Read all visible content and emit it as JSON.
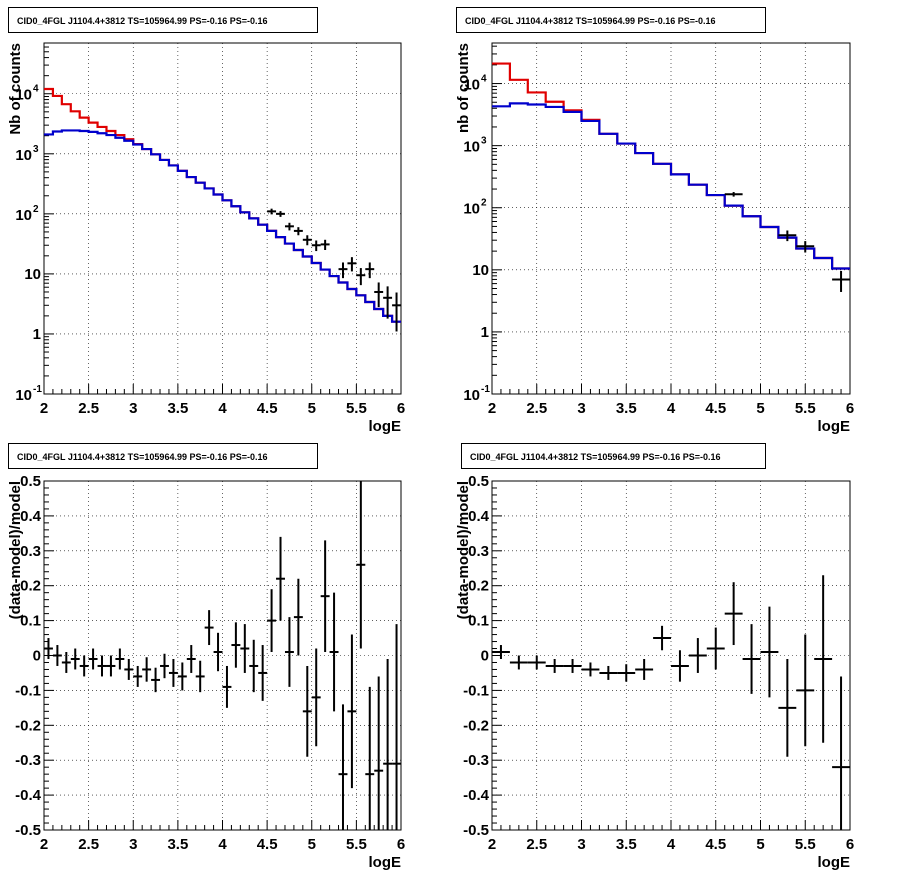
{
  "title_text": "CID0_4FGL J1104.4+3812 TS=105964.99 PS=-0.16 PS=-0.16",
  "chart_data": [
    {
      "panel": "counts-fine",
      "type": "line",
      "title": "CID0_4FGL J1104.4+3812 TS=105964.99 PS=-0.16 PS=-0.16",
      "xlabel": "logE",
      "ylabel": "Nb of counts",
      "xlim": [
        2,
        6
      ],
      "ylim": [
        0.1,
        70000
      ],
      "yscale": "log",
      "grid": true,
      "x_ticks": [
        "2",
        "2.5",
        "3",
        "3.5",
        "4",
        "4.5",
        "5",
        "5.5",
        "6"
      ],
      "y_ticks": [
        "10^-1",
        "1",
        "10",
        "10^2",
        "10^3",
        "10^4"
      ],
      "bin_edges": [
        2.0,
        2.1,
        2.2,
        2.3,
        2.4,
        2.5,
        2.6,
        2.7,
        2.8,
        2.9,
        3.0,
        3.1,
        3.2,
        3.3,
        3.4,
        3.5,
        3.6,
        3.7,
        3.8,
        3.9,
        4.0,
        4.1,
        4.2,
        4.3,
        4.4,
        4.5,
        4.6,
        4.7,
        4.8,
        4.9,
        5.0,
        5.1,
        5.2,
        5.3,
        5.4,
        5.5,
        5.6,
        5.7,
        5.8,
        5.9,
        6.0
      ],
      "series": [
        {
          "color": "#e00000",
          "draw": "step",
          "values": [
            12000,
            9200,
            6700,
            5100,
            4000,
            3300,
            2800,
            2400,
            2050,
            1750,
            1450,
            1200,
            980,
            790,
            640,
            520,
            410,
            330,
            265,
            210,
            168,
            134,
            106,
            84,
            66,
            52,
            41,
            32,
            25,
            19.5,
            15.2,
            11.8,
            9.2,
            7.2,
            5.6,
            4.4,
            3.4,
            2.6,
            2.0,
            1.6
          ]
        },
        {
          "color": "#0000cc",
          "draw": "step",
          "values": [
            2100,
            2350,
            2450,
            2450,
            2400,
            2320,
            2200,
            2050,
            1850,
            1650,
            1430,
            1200,
            980,
            790,
            640,
            520,
            410,
            330,
            265,
            210,
            168,
            134,
            106,
            84,
            66,
            52,
            41,
            32,
            25,
            19.5,
            15.2,
            11.8,
            9.2,
            7.2,
            5.6,
            4.4,
            3.4,
            2.6,
            2.0,
            1.6
          ]
        },
        {
          "color": "#000000",
          "draw": "errorbar",
          "x": [
            4.55,
            4.65,
            4.75,
            4.85,
            4.95,
            5.05,
            5.15,
            5.35,
            5.45,
            5.55,
            5.65,
            5.75,
            5.85,
            5.95
          ],
          "values": [
            110,
            100,
            62,
            52,
            37,
            30,
            31,
            12,
            15,
            9.5,
            12,
            5,
            4,
            3
          ],
          "errors": [
            12,
            11,
            9,
            8,
            7,
            6,
            6,
            3.5,
            4,
            3,
            3.5,
            2.2,
            2.2,
            1.9
          ]
        }
      ]
    },
    {
      "panel": "counts-coarse",
      "type": "line",
      "title": "CID0_4FGL J1104.4+3812 TS=105964.99 PS=-0.16 PS=-0.16",
      "xlabel": "logE",
      "ylabel": "nb of counts",
      "xlim": [
        2,
        6
      ],
      "ylim": [
        0.1,
        45000
      ],
      "yscale": "log",
      "grid": true,
      "x_ticks": [
        "2",
        "2.5",
        "3",
        "3.5",
        "4",
        "4.5",
        "5",
        "5.5",
        "6"
      ],
      "y_ticks": [
        "10^-1",
        "1",
        "10",
        "10^2",
        "10^3",
        "10^4"
      ],
      "bin_edges": [
        2.0,
        2.2,
        2.4,
        2.6,
        2.8,
        3.0,
        3.2,
        3.4,
        3.6,
        3.8,
        4.0,
        4.2,
        4.4,
        4.6,
        4.8,
        5.0,
        5.2,
        5.4,
        5.6,
        5.8,
        6.0
      ],
      "series": [
        {
          "color": "#e00000",
          "draw": "step",
          "values": [
            21000,
            11500,
            7200,
            5100,
            3700,
            2600,
            1550,
            1080,
            760,
            510,
            345,
            235,
            160,
            108,
            73,
            49,
            33,
            22,
            15.5,
            10.5
          ]
        },
        {
          "color": "#0000cc",
          "draw": "step",
          "values": [
            4300,
            4800,
            4600,
            4200,
            3500,
            2500,
            1550,
            1080,
            760,
            510,
            345,
            235,
            160,
            108,
            73,
            49,
            33,
            22,
            15.5,
            10.5
          ]
        },
        {
          "color": "#000000",
          "draw": "errorbar",
          "x": [
            4.7,
            5.3,
            5.5,
            5.9
          ],
          "values": [
            165,
            36,
            24,
            7
          ],
          "errors": [
            14,
            7,
            5,
            2.6
          ]
        }
      ]
    },
    {
      "panel": "residuals-fine",
      "type": "scatter",
      "title": "CID0_4FGL J1104.4+3812 TS=105964.99 PS=-0.16 PS=-0.16",
      "xlabel": "logE",
      "ylabel": "(data-model)/model",
      "xlim": [
        2,
        6
      ],
      "ylim": [
        -0.5,
        0.5
      ],
      "grid": true,
      "x_ticks": [
        "2",
        "2.5",
        "3",
        "3.5",
        "4",
        "4.5",
        "5",
        "5.5",
        "6"
      ],
      "y_ticks": [
        "-0.5",
        "-0.4",
        "-0.3",
        "-0.2",
        "-0.1",
        "0",
        "0.1",
        "0.2",
        "0.3",
        "0.4",
        "0.5"
      ],
      "x_halfwidth": 0.05,
      "x": [
        2.05,
        2.15,
        2.25,
        2.35,
        2.45,
        2.55,
        2.65,
        2.75,
        2.85,
        2.95,
        3.05,
        3.15,
        3.25,
        3.35,
        3.45,
        3.55,
        3.65,
        3.75,
        3.85,
        3.95,
        4.05,
        4.15,
        4.25,
        4.35,
        4.45,
        4.55,
        4.65,
        4.75,
        4.85,
        4.95,
        5.05,
        5.15,
        5.25,
        5.35,
        5.45,
        5.55,
        5.65,
        5.75,
        5.85,
        5.95
      ],
      "values": [
        0.02,
        0.0,
        -0.02,
        -0.01,
        -0.03,
        -0.01,
        -0.03,
        -0.03,
        -0.01,
        -0.04,
        -0.06,
        -0.04,
        -0.07,
        -0.03,
        -0.05,
        -0.06,
        -0.01,
        -0.06,
        0.08,
        0.01,
        -0.09,
        0.03,
        0.02,
        -0.03,
        -0.05,
        0.1,
        0.22,
        0.01,
        0.11,
        -0.16,
        -0.12,
        0.17,
        0.01,
        -0.34,
        -0.16,
        0.26,
        -0.34,
        -0.33,
        -0.31,
        -0.31
      ],
      "errors": [
        0.03,
        0.03,
        0.03,
        0.03,
        0.03,
        0.03,
        0.03,
        0.03,
        0.03,
        0.03,
        0.03,
        0.035,
        0.035,
        0.035,
        0.04,
        0.04,
        0.04,
        0.045,
        0.05,
        0.055,
        0.06,
        0.065,
        0.07,
        0.075,
        0.08,
        0.09,
        0.12,
        0.1,
        0.11,
        0.13,
        0.14,
        0.16,
        0.17,
        0.2,
        0.22,
        0.24,
        0.25,
        0.27,
        0.3,
        0.4
      ]
    },
    {
      "panel": "residuals-coarse",
      "type": "scatter",
      "title": "CID0_4FGL J1104.4+3812 TS=105964.99 PS=-0.16 PS=-0.16",
      "xlabel": "logE",
      "ylabel": "(data-model)/model",
      "xlim": [
        2,
        6
      ],
      "ylim": [
        -0.5,
        0.5
      ],
      "grid": true,
      "x_ticks": [
        "2",
        "2.5",
        "3",
        "3.5",
        "4",
        "4.5",
        "5",
        "5.5",
        "6"
      ],
      "y_ticks": [
        "-0.5",
        "-0.4",
        "-0.3",
        "-0.2",
        "-0.1",
        "0",
        "0.1",
        "0.2",
        "0.3",
        "0.4",
        "0.5"
      ],
      "x_halfwidth": 0.1,
      "x": [
        2.1,
        2.3,
        2.5,
        2.7,
        2.9,
        3.1,
        3.3,
        3.5,
        3.7,
        3.9,
        4.1,
        4.3,
        4.5,
        4.7,
        4.9,
        5.1,
        5.3,
        5.5,
        5.7,
        5.9
      ],
      "values": [
        0.01,
        -0.02,
        -0.02,
        -0.03,
        -0.03,
        -0.04,
        -0.05,
        -0.05,
        -0.04,
        0.05,
        -0.03,
        0.0,
        0.02,
        0.12,
        -0.01,
        0.01,
        -0.15,
        -0.1,
        -0.01,
        -0.32
      ],
      "errors": [
        0.02,
        0.02,
        0.02,
        0.02,
        0.02,
        0.02,
        0.02,
        0.025,
        0.03,
        0.035,
        0.045,
        0.05,
        0.06,
        0.09,
        0.1,
        0.13,
        0.14,
        0.16,
        0.24,
        0.26
      ]
    }
  ]
}
